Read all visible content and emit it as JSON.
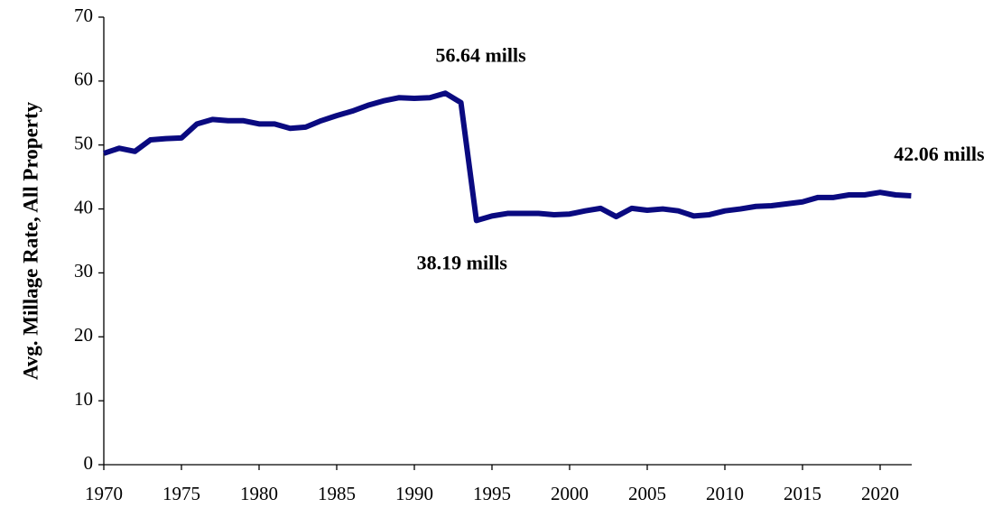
{
  "chart_data": {
    "type": "line",
    "y_label": "Avg. Millage Rate, All Property",
    "x": [
      1970,
      1971,
      1972,
      1973,
      1974,
      1975,
      1976,
      1977,
      1978,
      1979,
      1980,
      1981,
      1982,
      1983,
      1984,
      1985,
      1986,
      1987,
      1988,
      1989,
      1990,
      1991,
      1992,
      1993,
      1994,
      1995,
      1996,
      1997,
      1998,
      1999,
      2000,
      2001,
      2002,
      2003,
      2004,
      2005,
      2006,
      2007,
      2008,
      2009,
      2010,
      2011,
      2012,
      2013,
      2014,
      2015,
      2016,
      2017,
      2018,
      2019,
      2020,
      2021,
      2022
    ],
    "values": [
      48.7,
      49.5,
      49.0,
      50.8,
      51.0,
      51.1,
      53.3,
      54.0,
      53.8,
      53.8,
      53.3,
      53.3,
      52.6,
      52.8,
      53.8,
      54.6,
      55.3,
      56.2,
      56.9,
      57.4,
      57.3,
      57.4,
      58.1,
      56.64,
      38.19,
      38.9,
      39.3,
      39.3,
      39.3,
      39.1,
      39.2,
      39.7,
      40.1,
      38.8,
      40.1,
      39.8,
      40.0,
      39.7,
      38.9,
      39.1,
      39.7,
      40.0,
      40.4,
      40.5,
      40.8,
      41.1,
      41.8,
      41.8,
      42.2,
      42.2,
      42.6,
      42.2,
      42.06
    ],
    "color": "#0a0a80",
    "xlim": [
      1970,
      2022
    ],
    "xticks": [
      1970,
      1975,
      1980,
      1985,
      1990,
      1995,
      2000,
      2005,
      2010,
      2015,
      2020
    ],
    "ylim": [
      0,
      70
    ],
    "yticks": [
      0,
      10,
      20,
      30,
      40,
      50,
      60,
      70
    ],
    "grid": false,
    "annotations": [
      {
        "text": "56.64 mills",
        "x": 1993,
        "y": 56.64
      },
      {
        "text": "38.19 mills",
        "x": 1994,
        "y": 38.19
      },
      {
        "text": "42.06 mills",
        "x": 2022,
        "y": 42.06
      }
    ]
  }
}
